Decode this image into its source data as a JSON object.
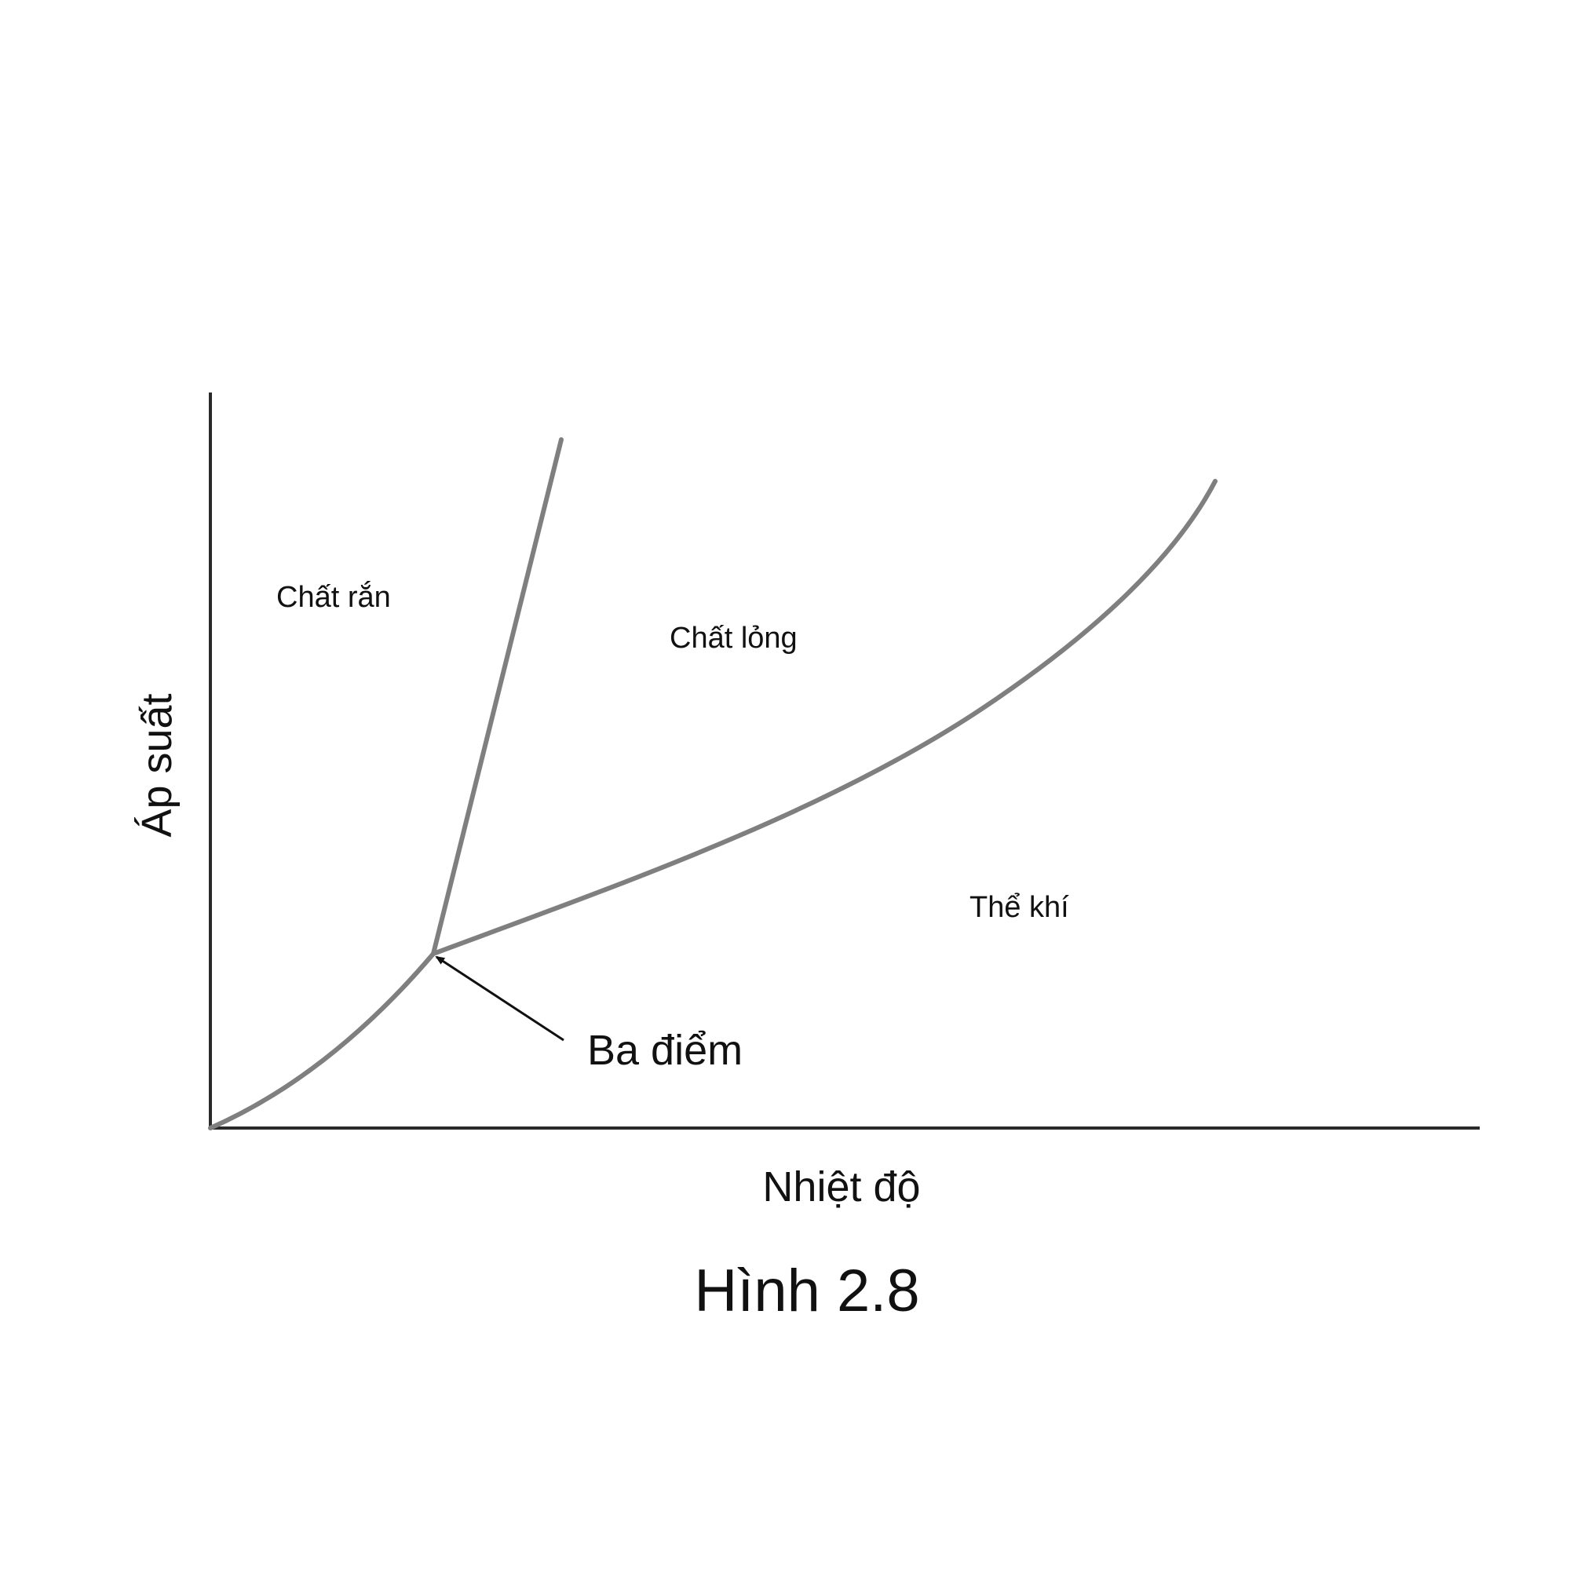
{
  "diagram": {
    "regions": {
      "solid": "Chất rắn",
      "liquid": "Chất lỏng",
      "gas": "Thể khí"
    },
    "axes": {
      "x_label": "Nhiệt độ",
      "y_label": "Áp suất"
    },
    "callout": {
      "label": "Ba điểm"
    },
    "caption": "Hình 2.8",
    "colors": {
      "axis": "#2a2a2a",
      "curve": "#7f7f7f",
      "text": "#111111",
      "background": "#ffffff"
    }
  }
}
